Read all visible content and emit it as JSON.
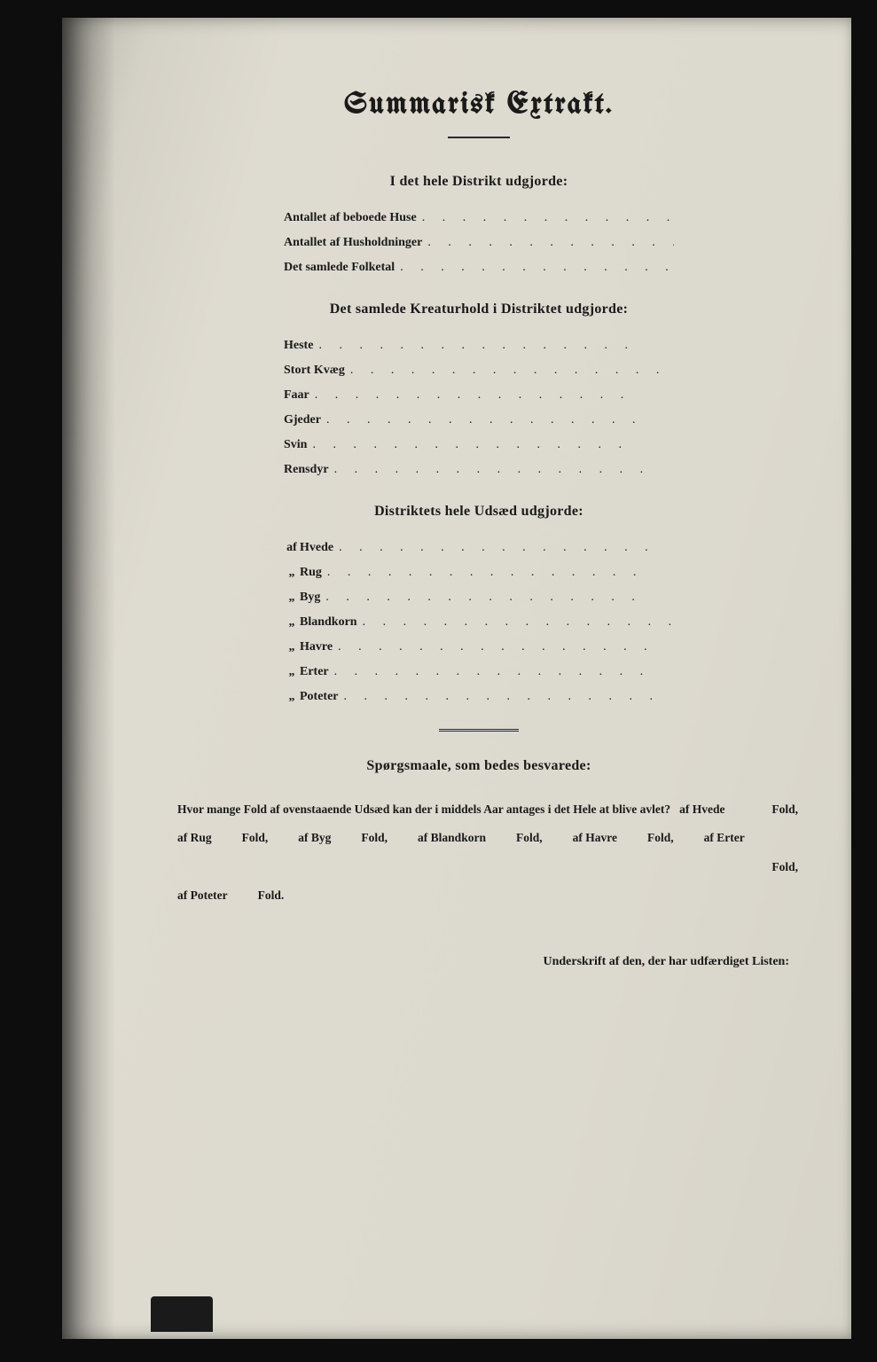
{
  "title": "Summarisk Extrakt.",
  "sections": {
    "district": {
      "heading": "I det hele Distrikt udgjorde:",
      "items": [
        {
          "label": "Antallet af beboede Huse"
        },
        {
          "label": "Antallet af Husholdninger"
        },
        {
          "label": "Det samlede Folketal"
        }
      ]
    },
    "livestock": {
      "heading": "Det samlede Kreaturhold i Distriktet udgjorde:",
      "items": [
        {
          "label": "Heste"
        },
        {
          "label": "Stort Kvæg"
        },
        {
          "label": "Faar"
        },
        {
          "label": "Gjeder"
        },
        {
          "label": "Svin"
        },
        {
          "label": "Rensdyr"
        }
      ]
    },
    "seed": {
      "heading": "Distriktets hele Udsæd udgjorde:",
      "items": [
        {
          "prefix": "af",
          "label": "Hvede"
        },
        {
          "prefix": "„",
          "label": "Rug"
        },
        {
          "prefix": "„",
          "label": "Byg"
        },
        {
          "prefix": "„",
          "label": "Blandkorn"
        },
        {
          "prefix": "„",
          "label": "Havre"
        },
        {
          "prefix": "„",
          "label": "Erter"
        },
        {
          "prefix": "„",
          "label": "Poteter"
        }
      ]
    }
  },
  "questions": {
    "heading": "Spørgsmaale, som bedes besvarede:",
    "lead": "Hvor mange Fold af ovenstaaende Udsæd kan der i middels Aar antages i det Hele at blive avlet?",
    "segments": [
      {
        "crop": "af Hvede",
        "unit": "Fold,"
      },
      {
        "crop": "af Rug",
        "unit": "Fold,"
      },
      {
        "crop": "af Byg",
        "unit": "Fold,"
      },
      {
        "crop": "af Blandkorn",
        "unit": "Fold,"
      },
      {
        "crop": "af Havre",
        "unit": "Fold,"
      },
      {
        "crop": "af Erter",
        "unit": "Fold,"
      },
      {
        "crop": "af Poteter",
        "unit": "Fold."
      }
    ]
  },
  "signature_line": "Underskrift af den, der har udfærdiget Listen:",
  "leader_dots": ". . . . . . . . . . . . . . . ."
}
